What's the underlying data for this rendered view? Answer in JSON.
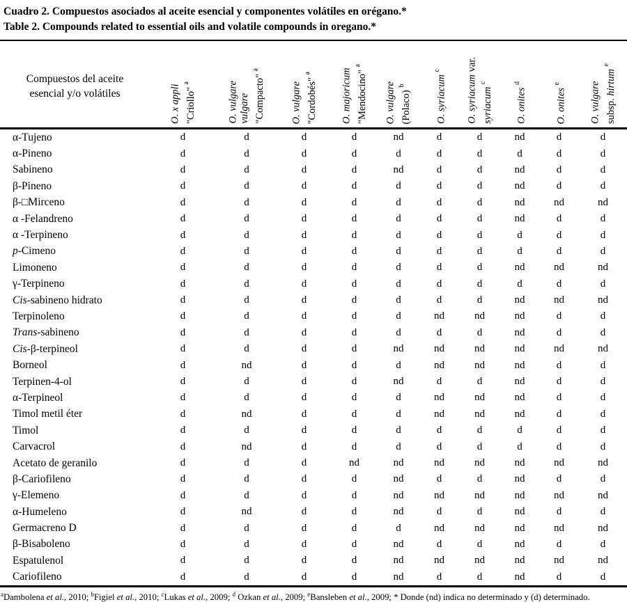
{
  "title": {
    "line1": "Cuadro 2. Compuestos asociados al aceite esencial y componentes volátiles en orégano.*",
    "line2": "Table 2. Compounds related to essential oils and volatile compounds in oregano.*"
  },
  "table": {
    "corner_header": "Compuestos del aceite esencial y/o volátiles",
    "cell_values_legend": {
      "d": "determinado",
      "nd": "no determinado"
    },
    "columns": [
      {
        "id": "criollo",
        "label": "O. x appli \"Criollo\" a",
        "lines": [
          [
            [
              "i",
              "O. x appli"
            ]
          ],
          [
            [
              "n",
              "\"Criollo\" "
            ],
            [
              "s",
              "a"
            ]
          ]
        ]
      },
      {
        "id": "compacto",
        "label": "O. vulgare vulgare \"Compacto\" a",
        "lines": [
          [
            [
              "i",
              "O. vulgare"
            ]
          ],
          [
            [
              "i",
              "vulgare"
            ]
          ],
          [
            [
              "n",
              "\"Compacto\" "
            ],
            [
              "s",
              "a"
            ]
          ]
        ]
      },
      {
        "id": "cordobes",
        "label": "O. vulgare \"Cordobés\" a",
        "lines": [
          [
            [
              "i",
              "O. vulgare"
            ]
          ],
          [
            [
              "n",
              "\"Cordobés\" "
            ],
            [
              "s",
              "a"
            ]
          ]
        ]
      },
      {
        "id": "mendocino",
        "label": "O. majoricum \"Mendocino\" a",
        "lines": [
          [
            [
              "i",
              "O. majoricum"
            ]
          ],
          [
            [
              "n",
              "\"Mendocino\" "
            ],
            [
              "s",
              "a"
            ]
          ]
        ]
      },
      {
        "id": "polaco",
        "label": "O. vulgare (Polaco) b",
        "lines": [
          [
            [
              "i",
              "O. vulgare"
            ]
          ],
          [
            [
              "n",
              "(Polaco) "
            ],
            [
              "s",
              "b"
            ]
          ]
        ]
      },
      {
        "id": "syriacum",
        "label": "O. syriacum c",
        "lines": [
          [
            [
              "i",
              "O. syriacum "
            ],
            [
              "s",
              "c"
            ]
          ]
        ]
      },
      {
        "id": "syriacum-var",
        "label": "O. syriacum var. syriacum c",
        "lines": [
          [
            [
              "i",
              "O. syriacum"
            ],
            [
              "n",
              " var."
            ]
          ],
          [
            [
              "i",
              "syriacum "
            ],
            [
              "s",
              "c"
            ]
          ]
        ]
      },
      {
        "id": "onites-d",
        "label": "O. onites d",
        "lines": [
          [
            [
              "i",
              "O. onites "
            ],
            [
              "s",
              "d"
            ]
          ]
        ]
      },
      {
        "id": "onites-e",
        "label": "O. onites e",
        "lines": [
          [
            [
              "i",
              "O. onites "
            ],
            [
              "s",
              "e"
            ]
          ]
        ]
      },
      {
        "id": "hirtum",
        "label": "O. vulgare subsp. hirtum e",
        "lines": [
          [
            [
              "i",
              "O. vulgare"
            ]
          ],
          [
            [
              "n",
              "subsp. "
            ],
            [
              "i",
              "hirtum "
            ],
            [
              "s",
              "e"
            ]
          ]
        ]
      }
    ],
    "rows": [
      {
        "label": "α-Tujeno",
        "values": [
          "d",
          "d",
          "d",
          "d",
          "nd",
          "d",
          "d",
          "nd",
          "d",
          "d"
        ]
      },
      {
        "label": "α-Pineno",
        "values": [
          "d",
          "d",
          "d",
          "d",
          "d",
          "d",
          "d",
          "d",
          "d",
          "d"
        ]
      },
      {
        "label": "Sabineno",
        "values": [
          "d",
          "d",
          "d",
          "d",
          "nd",
          "d",
          "d",
          "nd",
          "d",
          "d"
        ]
      },
      {
        "label": "β-Pineno",
        "values": [
          "d",
          "d",
          "d",
          "d",
          "d",
          "d",
          "d",
          "nd",
          "d",
          "d"
        ]
      },
      {
        "label": "β-□Mirceno",
        "values": [
          "d",
          "d",
          "d",
          "d",
          "d",
          "d",
          "d",
          "nd",
          "nd",
          "nd"
        ]
      },
      {
        "label": "α -Felandreno",
        "values": [
          "d",
          "d",
          "d",
          "d",
          "d",
          "d",
          "d",
          "nd",
          "d",
          "d"
        ]
      },
      {
        "label": "α -Terpineno",
        "values": [
          "d",
          "d",
          "d",
          "d",
          "d",
          "d",
          "d",
          "d",
          "d",
          "d"
        ]
      },
      {
        "label": "p-Cimeno",
        "italic_prefix": "p",
        "values": [
          "d",
          "d",
          "d",
          "d",
          "d",
          "d",
          "d",
          "d",
          "d",
          "d"
        ]
      },
      {
        "label": "Limoneno",
        "values": [
          "d",
          "d",
          "d",
          "d",
          "d",
          "d",
          "d",
          "nd",
          "nd",
          "nd"
        ]
      },
      {
        "label": "γ-Terpineno",
        "values": [
          "d",
          "d",
          "d",
          "d",
          "d",
          "d",
          "d",
          "d",
          "d",
          "d"
        ]
      },
      {
        "label": "Cis-sabineno hidrato",
        "italic_prefix": "Cis",
        "values": [
          "d",
          "d",
          "d",
          "d",
          "d",
          "d",
          "d",
          "nd",
          "nd",
          "nd"
        ]
      },
      {
        "label": "Terpinoleno",
        "values": [
          "d",
          "d",
          "d",
          "d",
          "d",
          "nd",
          "nd",
          "nd",
          "d",
          "d"
        ]
      },
      {
        "label": "Trans-sabineno",
        "italic_prefix": "Trans",
        "values": [
          "d",
          "d",
          "d",
          "d",
          "d",
          "d",
          "d",
          "nd",
          "d",
          "d"
        ]
      },
      {
        "label": "Cis-β-terpineol",
        "italic_prefix": "Cis",
        "values": [
          "d",
          "d",
          "d",
          "d",
          "nd",
          "nd",
          "nd",
          "nd",
          "nd",
          "nd"
        ]
      },
      {
        "label": "Borneol",
        "values": [
          "d",
          "nd",
          "d",
          "d",
          "d",
          "nd",
          "nd",
          "nd",
          "d",
          "d"
        ]
      },
      {
        "label": "Terpinen-4-ol",
        "values": [
          "d",
          "d",
          "d",
          "d",
          "nd",
          "d",
          "d",
          "nd",
          "d",
          "d"
        ]
      },
      {
        "label": "α-Terpineol",
        "values": [
          "d",
          "d",
          "d",
          "d",
          "d",
          "nd",
          "nd",
          "nd",
          "d",
          "d"
        ]
      },
      {
        "label": "Timol metil éter",
        "values": [
          "d",
          "nd",
          "d",
          "d",
          "d",
          "nd",
          "nd",
          "nd",
          "d",
          "d"
        ]
      },
      {
        "label": "Timol",
        "values": [
          "d",
          "d",
          "d",
          "d",
          "d",
          "d",
          "d",
          "d",
          "d",
          "d"
        ]
      },
      {
        "label": "Carvacrol",
        "values": [
          "d",
          "nd",
          "d",
          "d",
          "d",
          "d",
          "d",
          "d",
          "d",
          "d"
        ]
      },
      {
        "label": "Acetato de geranilo",
        "values": [
          "d",
          "d",
          "d",
          "nd",
          "nd",
          "nd",
          "nd",
          "nd",
          "nd",
          "nd"
        ]
      },
      {
        "label": "β-Cariofileno",
        "values": [
          "d",
          "d",
          "d",
          "d",
          "nd",
          "d",
          "d",
          "nd",
          "d",
          "d"
        ]
      },
      {
        "label": "γ-Elemeno",
        "values": [
          "d",
          "d",
          "d",
          "d",
          "nd",
          "nd",
          "nd",
          "nd",
          "nd",
          "nd"
        ]
      },
      {
        "label": "α-Humeleno",
        "values": [
          "d",
          "nd",
          "d",
          "d",
          "nd",
          "d",
          "d",
          "nd",
          "d",
          "d"
        ]
      },
      {
        "label": "Germacreno D",
        "values": [
          "d",
          "d",
          "d",
          "d",
          "d",
          "nd",
          "nd",
          "nd",
          "nd",
          "nd"
        ]
      },
      {
        "label": "β-Bisaboleno",
        "values": [
          "d",
          "d",
          "d",
          "d",
          "nd",
          "d",
          "d",
          "nd",
          "d",
          "d"
        ]
      },
      {
        "label": "Espatulenol",
        "values": [
          "d",
          "d",
          "d",
          "d",
          "nd",
          "nd",
          "nd",
          "nd",
          "nd",
          "nd"
        ]
      },
      {
        "label": "Cariofileno",
        "values": [
          "d",
          "d",
          "d",
          "d",
          "nd",
          "d",
          "d",
          "nd",
          "d",
          "d"
        ]
      }
    ]
  },
  "footnote": [
    [
      "s",
      "a"
    ],
    [
      "n",
      "Dambolena "
    ],
    [
      "i",
      "et al."
    ],
    [
      "n",
      ", 2010; "
    ],
    [
      "s",
      "b"
    ],
    [
      "n",
      "Figiel "
    ],
    [
      "i",
      "et al."
    ],
    [
      "n",
      ", 2010; "
    ],
    [
      "s",
      "c"
    ],
    [
      "n",
      "Lukas "
    ],
    [
      "i",
      "et al."
    ],
    [
      "n",
      ", 2009; "
    ],
    [
      "s",
      "d"
    ],
    [
      "n",
      " Ozkan "
    ],
    [
      "i",
      "et al."
    ],
    [
      "n",
      ", 2009; "
    ],
    [
      "s",
      "e"
    ],
    [
      "n",
      "Bansleben "
    ],
    [
      "i",
      "et al."
    ],
    [
      "n",
      ", 2009; * Donde (nd) indica no determinado y (d) determinado."
    ]
  ]
}
